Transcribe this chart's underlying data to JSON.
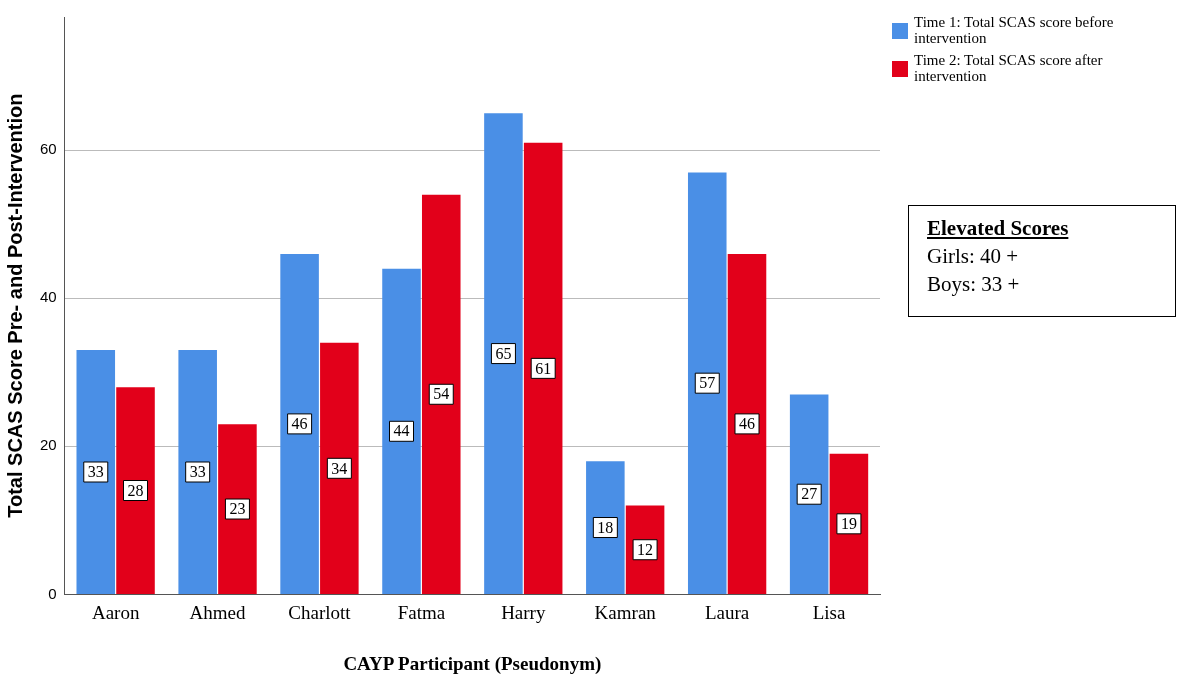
{
  "chart_data": {
    "type": "bar",
    "xlabel": "CAYP Participant (Pseudonym)",
    "ylabel": "Total SCAS Score Pre- and Post-Intervention",
    "categories": [
      "Aaron",
      "Ahmed",
      "Charlott",
      "Fatma",
      "Harry",
      "Kamran",
      "Laura",
      "Lisa"
    ],
    "series": [
      {
        "name": "Time 1: Total SCAS score before intervention",
        "color": "#4a8fe6",
        "values": [
          33,
          33,
          46,
          44,
          65,
          18,
          57,
          27
        ]
      },
      {
        "name": "Time 2: Total SCAS score after intervention",
        "color": "#e2001a",
        "values": [
          28,
          23,
          34,
          54,
          61,
          12,
          46,
          19
        ]
      }
    ],
    "ylim": [
      0,
      78
    ],
    "yticks": [
      0,
      20,
      40,
      60
    ],
    "grid": "y",
    "legend": "top right",
    "data_labels": true,
    "annotations": [
      "Elevated Scores",
      "Girls: 40 +",
      "Boys: 33 +"
    ]
  }
}
